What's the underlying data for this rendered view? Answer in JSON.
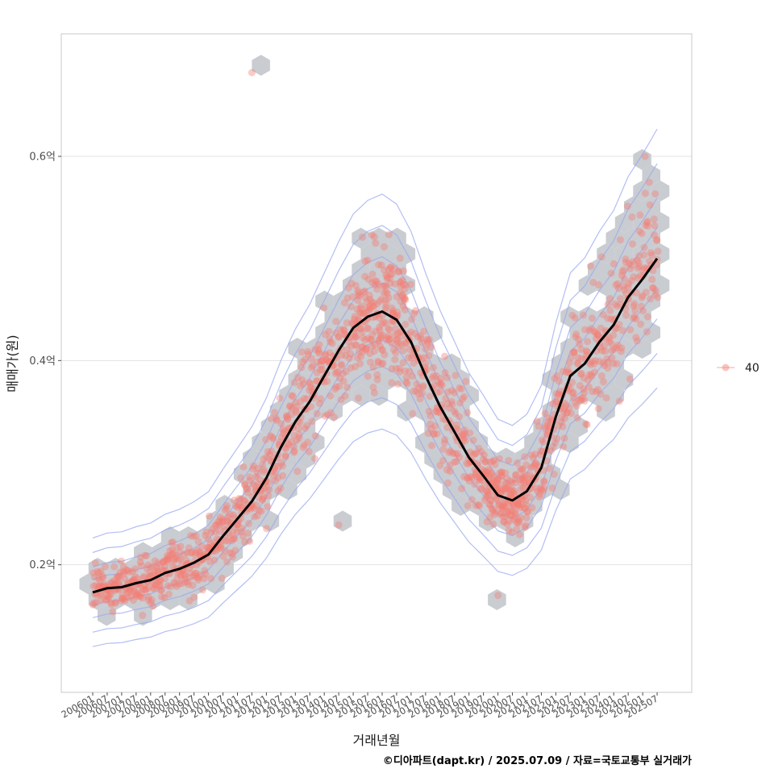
{
  "chart_data": {
    "type": "scatter",
    "x_label": "거래년월",
    "y_label": "매매가(원)",
    "y_ticks": [
      {
        "value": 0.2,
        "label": "0.2억"
      },
      {
        "value": 0.4,
        "label": "0.4억"
      },
      {
        "value": 0.6,
        "label": "0.6억"
      }
    ],
    "y_range": [
      0.075,
      0.72
    ],
    "x_ticks": [
      "200601",
      "200607",
      "200701",
      "200707",
      "200801",
      "200807",
      "200901",
      "200907",
      "201001",
      "201007",
      "201101",
      "201107",
      "201201",
      "201207",
      "201301",
      "201307",
      "201401",
      "201407",
      "201501",
      "201507",
      "201601",
      "201607",
      "201701",
      "201707",
      "201801",
      "201807",
      "201901",
      "201907",
      "202001",
      "202007",
      "202101",
      "202107",
      "202201",
      "202207",
      "202301",
      "202307",
      "202401",
      "202407",
      "202501",
      "202507"
    ],
    "legend": {
      "label": "40"
    },
    "caption": "©디아파트(dapt.kr) / 2025.07.09 / 자료=국토교통부 실거래가",
    "grid": true,
    "colors": {
      "points": "#f47c72",
      "hex": "#c3c7cc",
      "contour": "#9aa8ee",
      "trend": "#000000",
      "grid": "#e3e3e3",
      "frame": "#c8c8c8"
    },
    "trend_line": [
      {
        "x": "200601",
        "y": 0.173
      },
      {
        "x": "200607",
        "y": 0.177
      },
      {
        "x": "200701",
        "y": 0.178
      },
      {
        "x": "200707",
        "y": 0.182
      },
      {
        "x": "200801",
        "y": 0.185
      },
      {
        "x": "200807",
        "y": 0.192
      },
      {
        "x": "200901",
        "y": 0.196
      },
      {
        "x": "200907",
        "y": 0.202
      },
      {
        "x": "201001",
        "y": 0.21
      },
      {
        "x": "201007",
        "y": 0.228
      },
      {
        "x": "201101",
        "y": 0.245
      },
      {
        "x": "201107",
        "y": 0.262
      },
      {
        "x": "201201",
        "y": 0.285
      },
      {
        "x": "201207",
        "y": 0.315
      },
      {
        "x": "201301",
        "y": 0.34
      },
      {
        "x": "201307",
        "y": 0.36
      },
      {
        "x": "201401",
        "y": 0.385
      },
      {
        "x": "201407",
        "y": 0.41
      },
      {
        "x": "201501",
        "y": 0.432
      },
      {
        "x": "201507",
        "y": 0.443
      },
      {
        "x": "201601",
        "y": 0.448
      },
      {
        "x": "201607",
        "y": 0.44
      },
      {
        "x": "201701",
        "y": 0.418
      },
      {
        "x": "201707",
        "y": 0.385
      },
      {
        "x": "201801",
        "y": 0.355
      },
      {
        "x": "201807",
        "y": 0.33
      },
      {
        "x": "201901",
        "y": 0.305
      },
      {
        "x": "201907",
        "y": 0.287
      },
      {
        "x": "202001",
        "y": 0.268
      },
      {
        "x": "202007",
        "y": 0.263
      },
      {
        "x": "202101",
        "y": 0.272
      },
      {
        "x": "202107",
        "y": 0.295
      },
      {
        "x": "202201",
        "y": 0.345
      },
      {
        "x": "202207",
        "y": 0.385
      },
      {
        "x": "202301",
        "y": 0.397
      },
      {
        "x": "202307",
        "y": 0.418
      },
      {
        "x": "202401",
        "y": 0.435
      },
      {
        "x": "202407",
        "y": 0.462
      },
      {
        "x": "202501",
        "y": 0.48
      },
      {
        "x": "202507",
        "y": 0.5
      }
    ],
    "outliers": [
      {
        "x": "201107",
        "y": 0.682
      },
      {
        "x": "201407",
        "y": 0.239
      },
      {
        "x": "202001",
        "y": 0.17
      },
      {
        "x": "202502",
        "y": 0.6
      }
    ]
  }
}
